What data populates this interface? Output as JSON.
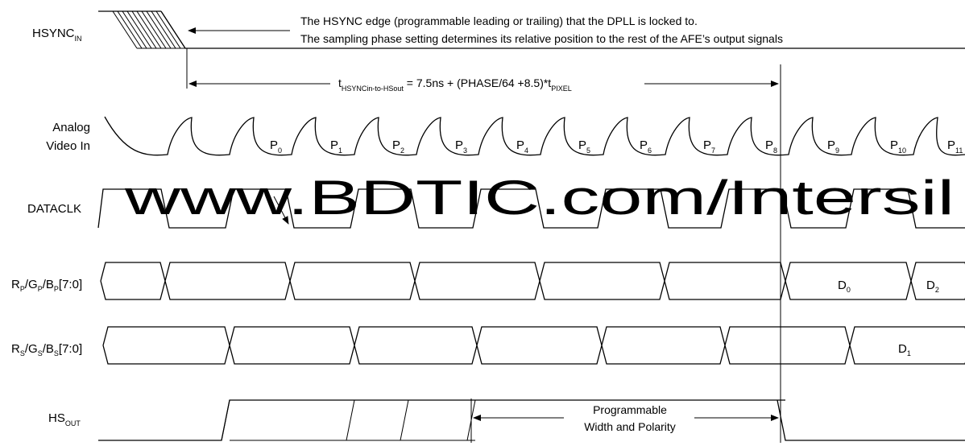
{
  "signals": {
    "hsync_in": {
      "main": "HSYNC",
      "sub": "IN"
    },
    "analog_line1": "Analog",
    "analog_line2": "Video In",
    "dataclk": "DATACLK",
    "rgb_p": {
      "r": "R",
      "g": "/G",
      "b": "/B",
      "s": "P",
      "bus": "[7:0]"
    },
    "rgb_s": {
      "r": "R",
      "g": "/G",
      "b": "/B",
      "s": "S",
      "bus": "[7:0]"
    },
    "hs_out": {
      "main": "HS",
      "sub": "OUT"
    }
  },
  "notes": {
    "hsync_line1": "The HSYNC edge (programmable leading or trailing) that the DPLL is locked to.",
    "hsync_line2": "The sampling phase setting determines its relative position to the rest of the AFE’s output signals",
    "timing_t": "t",
    "timing_t_sub": "HSYNCin-to-HSout",
    "timing_mid": " = 7.5ns + (PHASE/64 +8.5)*t",
    "timing_pixel_sub": "PIXEL",
    "prog_line1": "Programmable",
    "prog_line2": "Width and Polarity"
  },
  "pixels": [
    {
      "n": "P",
      "i": "0"
    },
    {
      "n": "P",
      "i": "1"
    },
    {
      "n": "P",
      "i": "2"
    },
    {
      "n": "P",
      "i": "3"
    },
    {
      "n": "P",
      "i": "4"
    },
    {
      "n": "P",
      "i": "5"
    },
    {
      "n": "P",
      "i": "6"
    },
    {
      "n": "P",
      "i": "7"
    },
    {
      "n": "P",
      "i": "8"
    },
    {
      "n": "P",
      "i": "9"
    },
    {
      "n": "P",
      "i": "10"
    },
    {
      "n": "P",
      "i": "11"
    }
  ],
  "data_labels": {
    "d0": {
      "n": "D",
      "i": "0"
    },
    "d1": {
      "n": "D",
      "i": "1"
    },
    "d2": {
      "n": "D",
      "i": "2"
    }
  },
  "watermark": "www.BDTIC.com/Intersil"
}
